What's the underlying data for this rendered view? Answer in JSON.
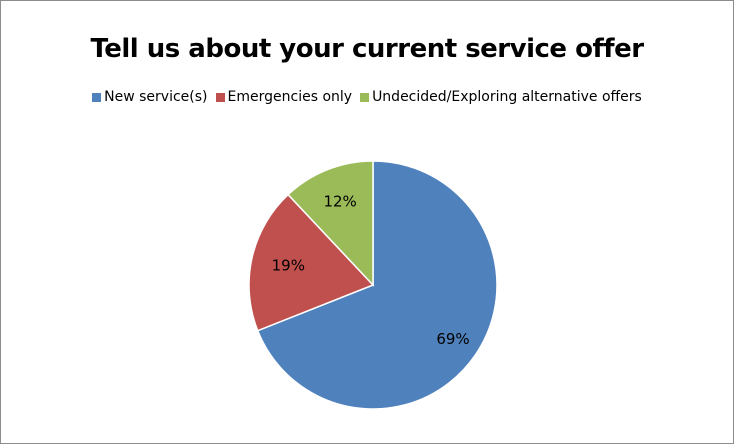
{
  "chart_data": {
    "type": "pie",
    "title": "Tell us about your current service offer",
    "legend_position": "top",
    "slices": [
      {
        "name": "New service(s)",
        "value": 69,
        "label": "69%",
        "color": "#4f81bd"
      },
      {
        "name": "Emergencies only",
        "value": 19,
        "label": "19%",
        "color": "#c0504d"
      },
      {
        "name": "Undecided/Exploring alternative offers",
        "value": 12,
        "label": "12%",
        "color": "#9bbb59"
      }
    ]
  }
}
